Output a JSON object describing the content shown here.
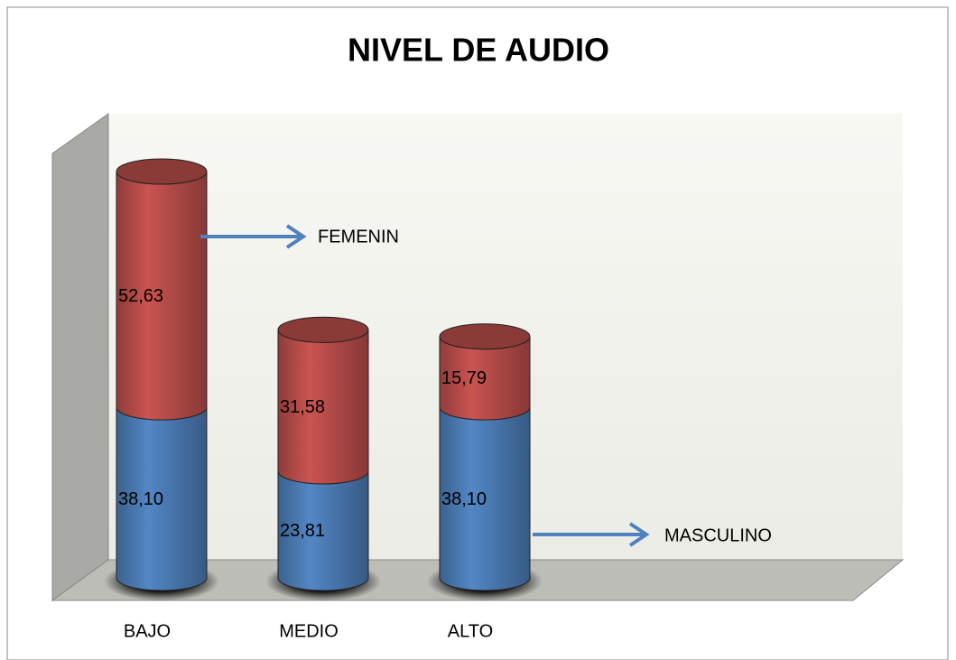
{
  "chart_data": {
    "type": "bar",
    "stacked": true,
    "title": "NIVEL DE AUDIO",
    "categories": [
      "BAJO",
      "MEDIO",
      "ALTO"
    ],
    "series": [
      {
        "name": "MASCULINO",
        "color": "#4f81bd",
        "values": [
          38.1,
          23.81,
          38.1
        ],
        "value_labels": [
          "38,10",
          "23,81",
          "38,10"
        ]
      },
      {
        "name": "FEMENIN",
        "color": "#c0504d",
        "values": [
          52.63,
          31.58,
          15.79
        ],
        "value_labels": [
          "52,63",
          "31,58",
          "15,79"
        ]
      }
    ]
  }
}
